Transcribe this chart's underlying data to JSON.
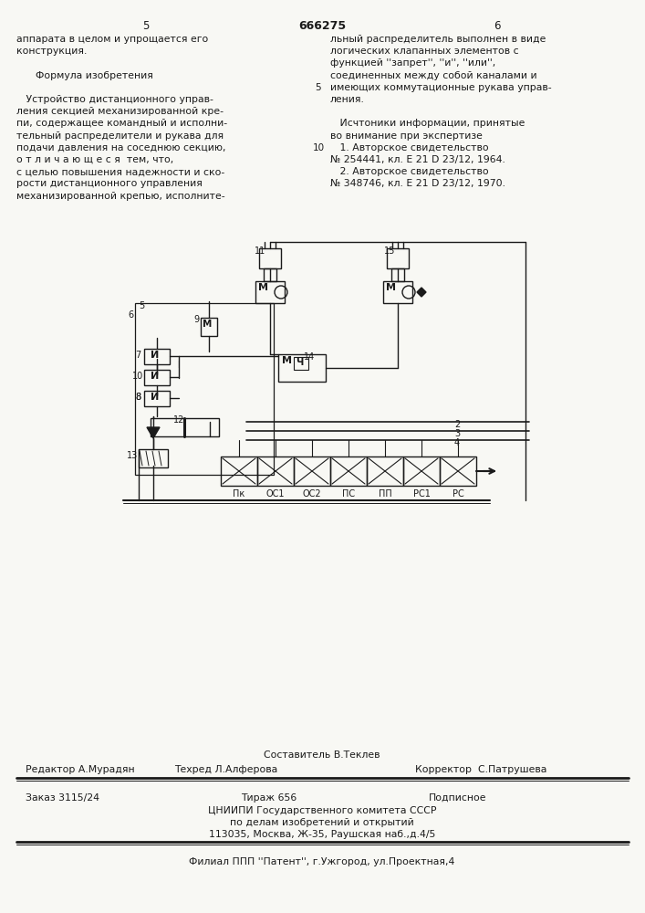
{
  "page_number_center": "666275",
  "page_left": "5",
  "page_right": "6",
  "left_col_lines": [
    "аппарата в целом и упрощается его",
    "конструкция.",
    "",
    "      Формула изобретения",
    "",
    "   Устройство дистанционного управ-",
    "ления секцией механизированной кре-",
    "пи, содержащее командный и исполни-",
    "тельный распределители и рукава для",
    "подачи давления на соседнюю секцию,",
    "о т л и ч а ю щ е с я  тем, что,",
    "с целью повышения надежности и ско-",
    "рости дистанционного управления",
    "механизированной крепью, исполните-"
  ],
  "right_col_lines": [
    "льный распределитель выполнен в виде",
    "логических клапанных элементов с",
    "функцией ''запрет'', ''и'', ''или'',",
    "соединенных между собой каналами и",
    "имеющих коммутационные рукава управ-",
    "ления.",
    "",
    "   Исчтоники информации, принятые",
    "во внимание при экспертизе",
    "   1. Авторское свидетельство",
    "№ 254441, кл. E 21 D 23/12, 1964.",
    "   2. Авторское свидетельство",
    "№ 348746, кл. E 21 D 23/12, 1970."
  ],
  "editor_line": "Редактор А.Мурадян",
  "compiler_line": "Составитель В.Теклев",
  "techred_line": "Техред Л.Алферова",
  "corrector_line": "Корректор  С.Патрушева",
  "order_line": "Заказ 3115/24",
  "print_line": "Тираж 656",
  "sign_line": "Подписное",
  "org_line1": "ЦНИИПИ Государственного комитета СССР",
  "org_line2": "по делам изобретений и открытий",
  "org_line3": "113035, Москва, Ж-35, Раушская наб.,д.4/5",
  "filial_line": "Филиал ППП ''Патент'', г.Ужгород, ул.Проектная,4",
  "bg_color": "#f8f8f4",
  "text_color": "#1a1a1a",
  "bottom_labels": [
    "Пк",
    "ОС1",
    "ОС2",
    "ПС",
    "ПП",
    "РС1",
    "РС"
  ]
}
